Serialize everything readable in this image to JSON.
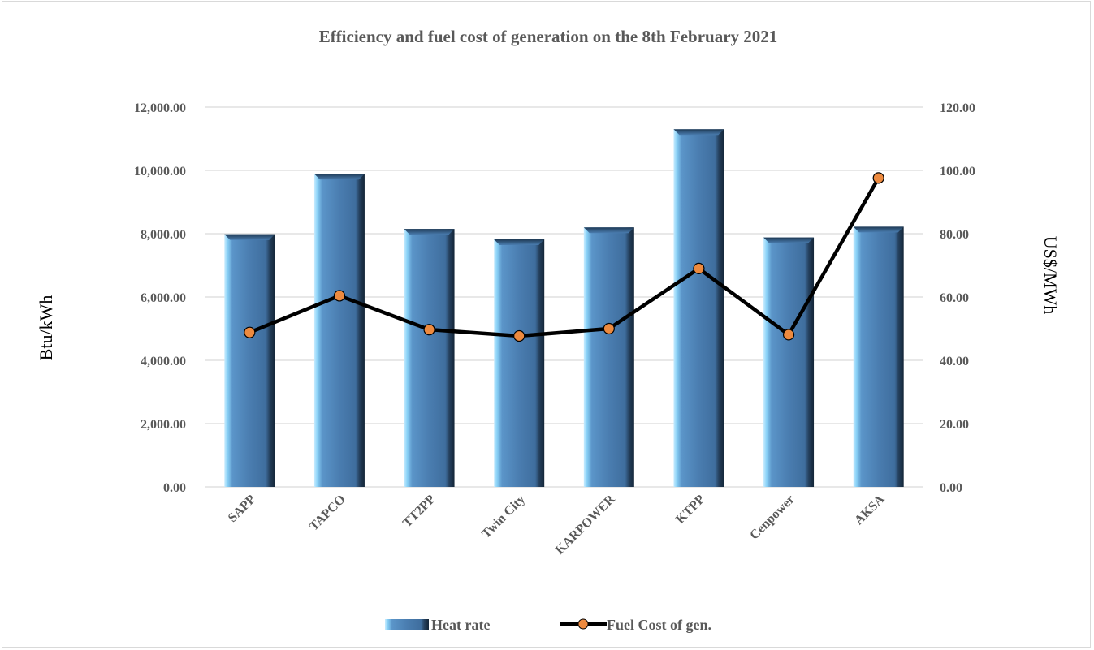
{
  "chart_data": {
    "type": "bar+line",
    "title": "Efficiency and fuel cost of generation on the 8th February 2021",
    "categories": [
      "SAPP",
      "TAPCO",
      "TT2PP",
      "Twin City",
      "KARPOWER",
      "KTPP",
      "Cenpower",
      "AKSA"
    ],
    "series": [
      {
        "name": "Heat rate",
        "type": "bar",
        "axis": "left",
        "color": "#4a7db0",
        "values": [
          7980,
          9890,
          8150,
          7820,
          8200,
          11300,
          7880,
          8220
        ]
      },
      {
        "name": "Fuel Cost of gen.",
        "type": "line",
        "axis": "right",
        "color": "#000000",
        "marker_color": "#ed8a3f",
        "values": [
          48.8,
          60.4,
          49.7,
          47.7,
          50.0,
          69.0,
          48.1,
          97.6
        ]
      }
    ],
    "y_left": {
      "label": "Btu/kWh",
      "range": [
        0,
        12000
      ],
      "ticks": [
        "0.00",
        "2,000.00",
        "4,000.00",
        "6,000.00",
        "8,000.00",
        "10,000.00",
        "12,000.00"
      ]
    },
    "y_right": {
      "label": "US$/MWh",
      "range": [
        0,
        120
      ],
      "ticks": [
        "0.00",
        "20.00",
        "40.00",
        "60.00",
        "80.00",
        "100.00",
        "120.00"
      ]
    },
    "grid": true,
    "legend_position": "bottom"
  }
}
